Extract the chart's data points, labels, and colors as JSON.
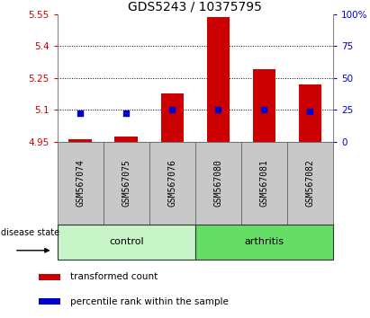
{
  "title": "GDS5243 / 10375795",
  "samples": [
    "GSM567074",
    "GSM567075",
    "GSM567076",
    "GSM567080",
    "GSM567081",
    "GSM567082"
  ],
  "transformed_counts": [
    4.96,
    4.975,
    5.175,
    5.535,
    5.29,
    5.22
  ],
  "percentile_ranks": [
    22,
    22,
    25,
    25,
    25,
    24
  ],
  "ylim_left": [
    4.95,
    5.55
  ],
  "ylim_right": [
    0,
    100
  ],
  "yticks_left": [
    4.95,
    5.1,
    5.25,
    5.4,
    5.55
  ],
  "yticks_right": [
    0,
    25,
    50,
    75,
    100
  ],
  "ytick_labels_left": [
    "4.95",
    "5.1",
    "5.25",
    "5.4",
    "5.55"
  ],
  "ytick_labels_right": [
    "0",
    "25",
    "50",
    "75",
    "100%"
  ],
  "groups": [
    {
      "label": "control",
      "indices": [
        0,
        1,
        2
      ],
      "color": "#c8f5c8"
    },
    {
      "label": "arthritis",
      "indices": [
        3,
        4,
        5
      ],
      "color": "#66dd66"
    }
  ],
  "disease_state_label": "disease state",
  "bar_color": "#cc0000",
  "dot_color": "#0000cc",
  "bar_bottom": 4.95,
  "dot_size": 22,
  "grid_color": "#000000",
  "sample_bg_color": "#c8c8c8",
  "plot_bg": "#ffffff",
  "legend_red_label": "transformed count",
  "legend_blue_label": "percentile rank within the sample",
  "title_fontsize": 10,
  "tick_fontsize": 7.5,
  "sample_label_fontsize": 7,
  "group_label_fontsize": 8,
  "legend_fontsize": 7.5
}
